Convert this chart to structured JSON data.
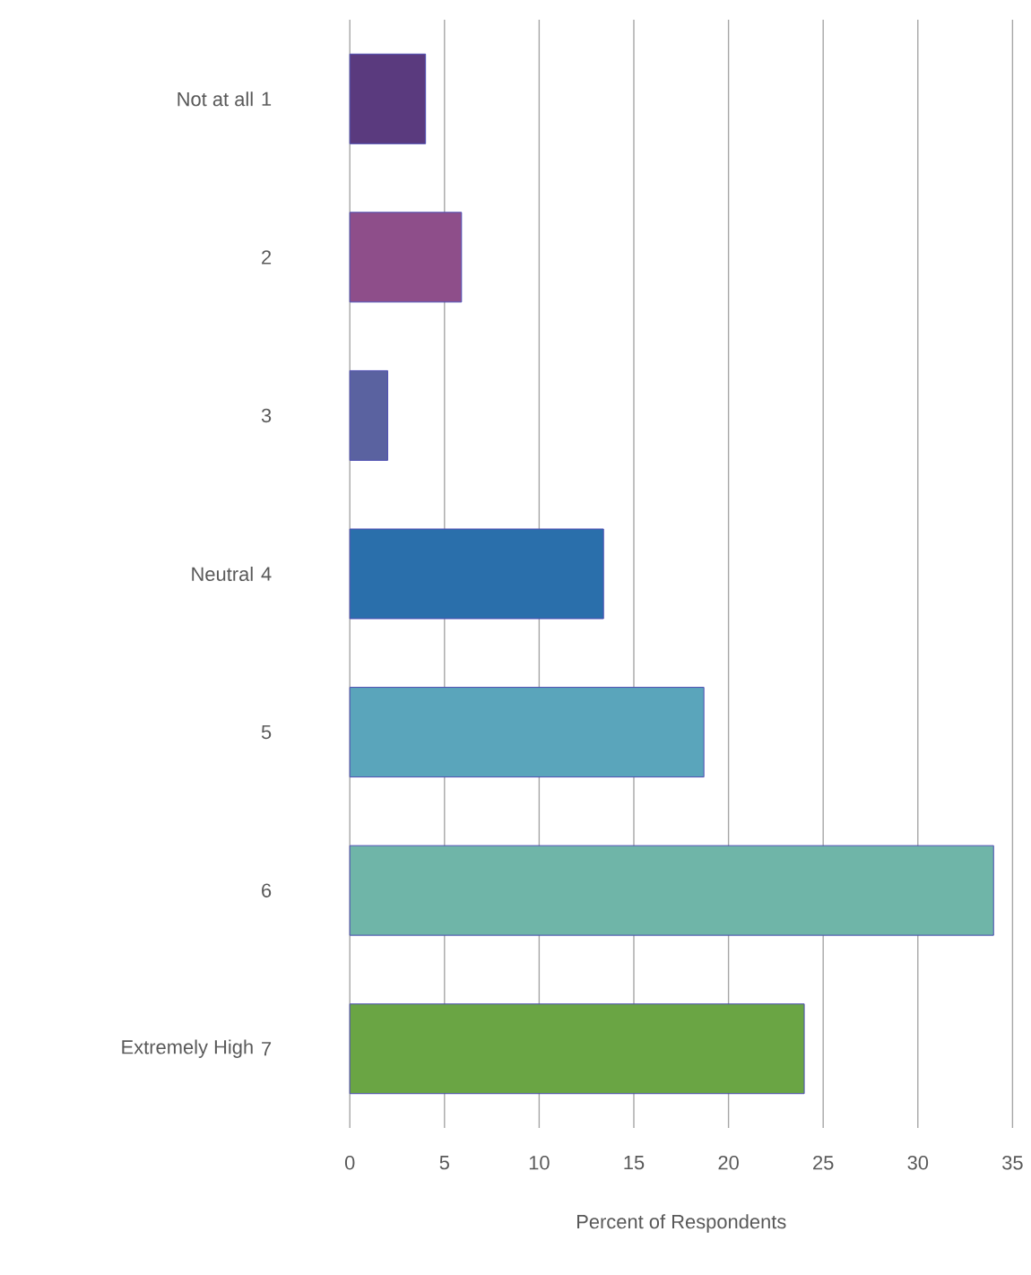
{
  "chart_data": {
    "type": "bar",
    "orientation": "horizontal",
    "categories": [
      "1",
      "2",
      "3",
      "4",
      "5",
      "6",
      "7"
    ],
    "values": [
      4.0,
      5.9,
      2.0,
      13.4,
      18.7,
      34.0,
      24.0
    ],
    "colors": [
      "#5a3a7e",
      "#8e4e8a",
      "#5a62a0",
      "#2a6fab",
      "#5aa5bb",
      "#6fb5a8",
      "#6aa544"
    ],
    "xlim": [
      0,
      35
    ],
    "xticks": [
      0,
      5,
      10,
      15,
      20,
      25,
      30,
      35
    ],
    "xlabel": "Percent of Respondents",
    "grid": "x",
    "annotations": [
      "Not at all",
      "Neutral",
      "Extremely High"
    ]
  }
}
